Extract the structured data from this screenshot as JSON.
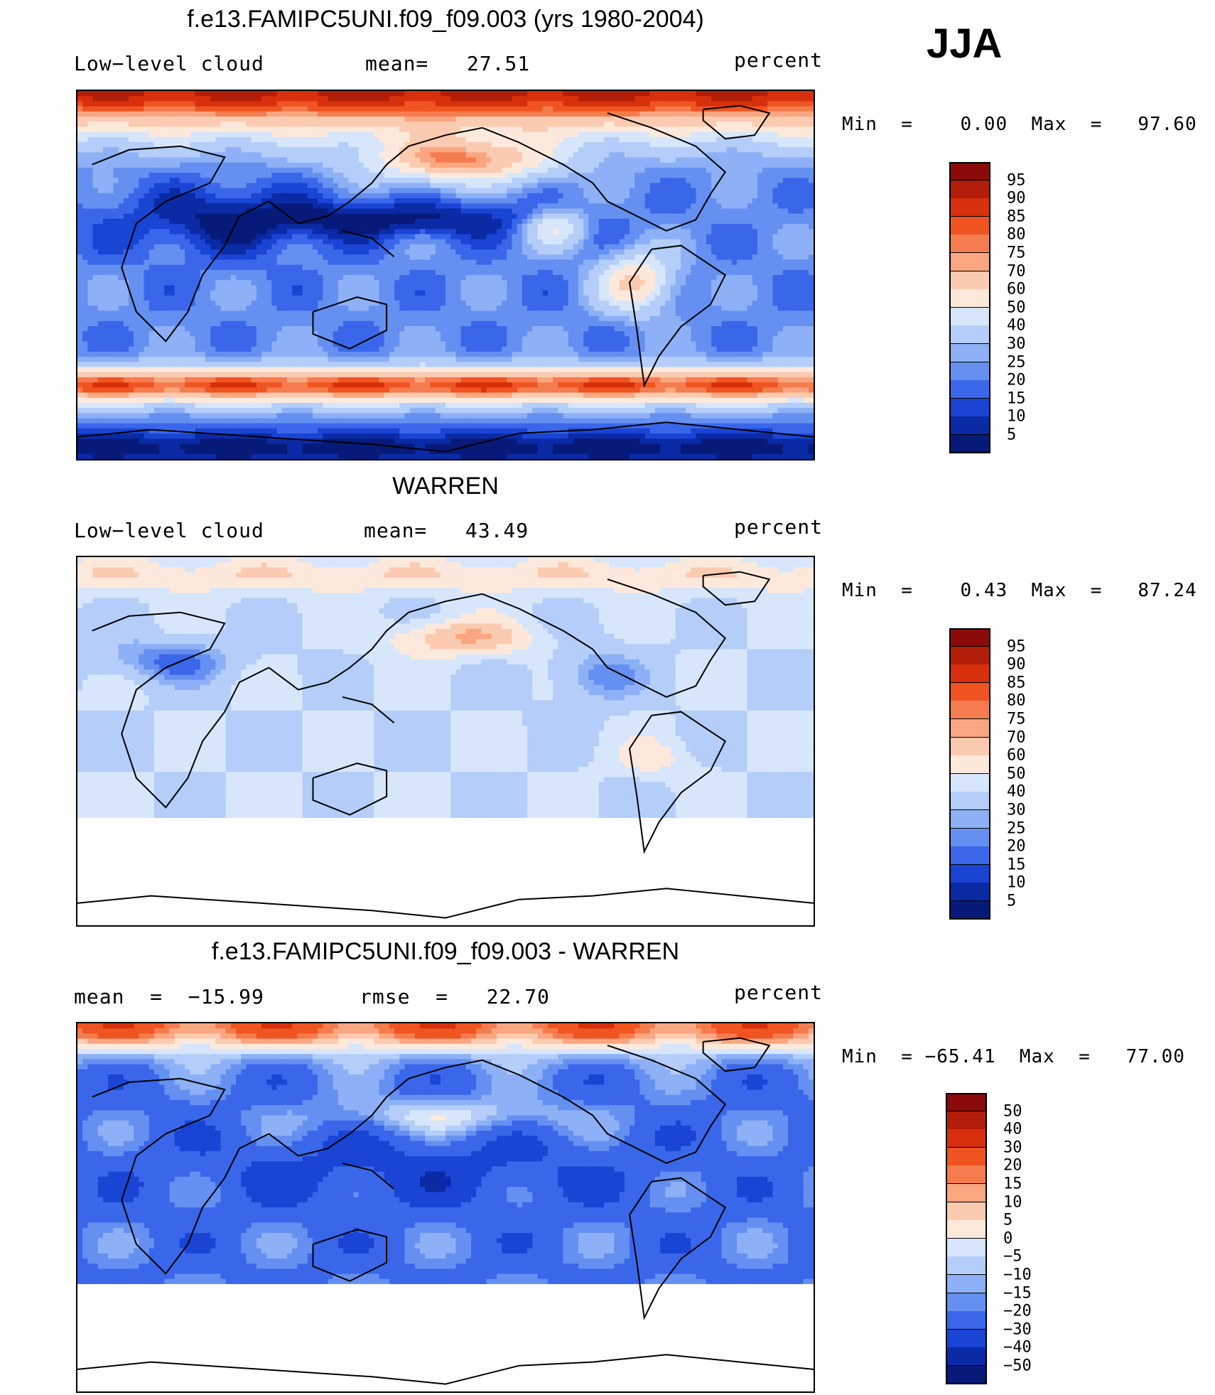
{
  "season": "JJA",
  "panels": [
    {
      "title": "f.e13.FAMIPC5UNI.f09_f09.003 (yrs 1980-2004)",
      "left_label": "Low−level cloud",
      "center_label": "mean=   27.51",
      "right_label": "percent",
      "minmax": "Min  =    0.00  Max  =   97.60",
      "colorbar_labels": [
        "95",
        "90",
        "85",
        "80",
        "75",
        "70",
        "60",
        "50",
        "40",
        "30",
        "25",
        "20",
        "15",
        "10",
        "5"
      ],
      "colorbar_colors": [
        "#8b0a0a",
        "#b31e0a",
        "#d8300c",
        "#ef5421",
        "#f57c4e",
        "#f9a681",
        "#fbcbb1",
        "#fde9dc",
        "#d7e6fb",
        "#b4cef9",
        "#8db0f6",
        "#6590f1",
        "#3a67ea",
        "#1a44d4",
        "#0b2aa6",
        "#071a7a"
      ],
      "field": "model"
    },
    {
      "title": "WARREN",
      "left_label": "Low−level cloud",
      "center_label": "mean=   43.49",
      "right_label": "percent",
      "minmax": "Min  =    0.43  Max  =   87.24",
      "colorbar_labels": [
        "95",
        "90",
        "85",
        "80",
        "75",
        "70",
        "60",
        "50",
        "40",
        "30",
        "25",
        "20",
        "15",
        "10",
        "5"
      ],
      "colorbar_colors": [
        "#8b0a0a",
        "#b31e0a",
        "#d8300c",
        "#ef5421",
        "#f57c4e",
        "#f9a681",
        "#fbcbb1",
        "#fde9dc",
        "#d7e6fb",
        "#b4cef9",
        "#8db0f6",
        "#6590f1",
        "#3a67ea",
        "#1a44d4",
        "#0b2aa6",
        "#071a7a"
      ],
      "field": "obs"
    },
    {
      "title": "f.e13.FAMIPC5UNI.f09_f09.003 - WARREN",
      "left_label": "mean  =  −15.99",
      "center_label": "rmse  =   22.70",
      "right_label": "percent",
      "minmax": "Min  = −65.41  Max  =   77.00",
      "colorbar_labels": [
        "50",
        "40",
        "30",
        "20",
        "15",
        "10",
        "5",
        "0",
        "−5",
        "−10",
        "−15",
        "−20",
        "−30",
        "−40",
        "−50"
      ],
      "colorbar_colors": [
        "#8b0a0a",
        "#b31e0a",
        "#d8300c",
        "#ef5421",
        "#f57c4e",
        "#f9a681",
        "#fbcbb1",
        "#fde9dc",
        "#d7e6fb",
        "#b4cef9",
        "#8db0f6",
        "#6590f1",
        "#3a67ea",
        "#1a44d4",
        "#0b2aa6",
        "#071a7a"
      ],
      "field": "diff"
    }
  ]
}
